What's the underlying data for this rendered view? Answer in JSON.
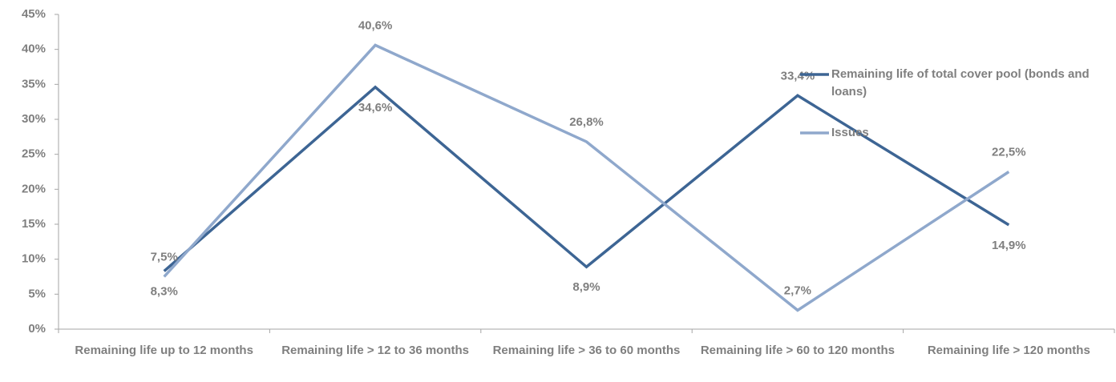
{
  "chart_data": {
    "type": "line",
    "categories": [
      "Remaining life up to 12 months",
      "Remaining life > 12 to 36 months",
      "Remaining life > 36 to 60 months",
      "Remaining life > 60 to 120 months",
      "Remaining life > 120 months"
    ],
    "series": [
      {
        "name": "Remaining life of total cover pool (bonds and loans)",
        "color": "#3d6594",
        "values": [
          8.3,
          34.6,
          8.9,
          33.4,
          14.9
        ],
        "value_labels": [
          "8,3%",
          "34,6%",
          "8,9%",
          "33,4%",
          "14,9%"
        ]
      },
      {
        "name": "Issues",
        "color": "#8fa8cc",
        "values": [
          7.5,
          40.6,
          26.8,
          2.7,
          22.5
        ],
        "value_labels": [
          "7,5%",
          "40,6%",
          "26,8%",
          "2,7%",
          "22,5%"
        ]
      }
    ],
    "ylim": [
      0,
      45
    ],
    "yticks": [
      {
        "value": 0,
        "label": "0%"
      },
      {
        "value": 5,
        "label": "5%"
      },
      {
        "value": 10,
        "label": "10%"
      },
      {
        "value": 15,
        "label": "15%"
      },
      {
        "value": 20,
        "label": "20%"
      },
      {
        "value": 25,
        "label": "25%"
      },
      {
        "value": 30,
        "label": "30%"
      },
      {
        "value": 35,
        "label": "35%"
      },
      {
        "value": 40,
        "label": "40%"
      },
      {
        "value": 45,
        "label": "45%"
      }
    ],
    "grid": false,
    "legend": "right"
  }
}
